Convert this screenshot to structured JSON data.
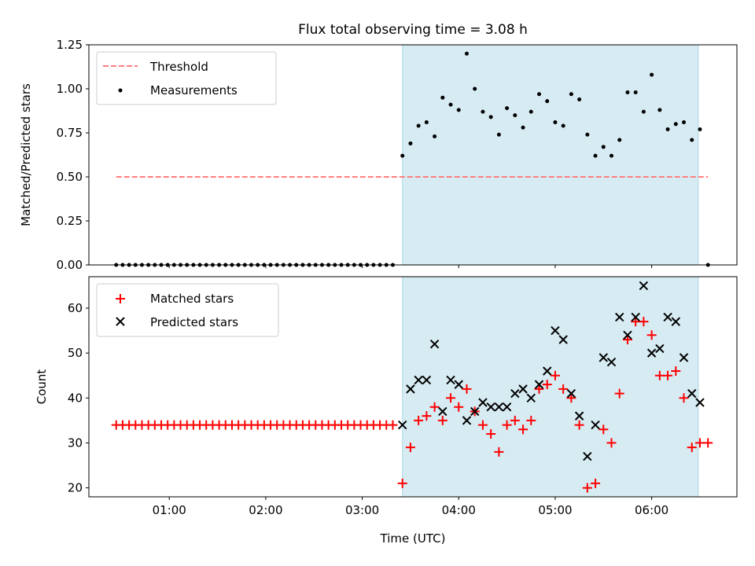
{
  "figure": {
    "title": "Flux total observing time = 3.08 h",
    "xlabel": "Time (UTC)"
  },
  "colors": {
    "threshold": "#ff7f7f",
    "measurements": "#000000",
    "matched": "#ff0000",
    "predicted": "#000000",
    "shade": "#add8e6"
  },
  "chart_data": [
    {
      "type": "scatter",
      "ylabel": "Matched/Predicted stars",
      "xlim": [
        "00:10",
        "06:53"
      ],
      "ylim": [
        0,
        1.25
      ],
      "yticks": [
        "0.00",
        "0.25",
        "0.50",
        "0.75",
        "1.00",
        "1.25"
      ],
      "shaded_range": [
        "03:25",
        "06:29"
      ],
      "legend_position": "upper-left",
      "legend": [
        "Threshold",
        "Measurements"
      ],
      "threshold": {
        "name": "Threshold",
        "value": 0.5,
        "x_start": "00:27",
        "x_end": "06:35"
      },
      "series": [
        {
          "name": "Measurements",
          "x": [
            "00:27",
            "00:31",
            "00:35",
            "00:39",
            "00:43",
            "00:47",
            "00:51",
            "00:55",
            "00:59",
            "01:03",
            "01:07",
            "01:11",
            "01:15",
            "01:19",
            "01:23",
            "01:27",
            "01:31",
            "01:35",
            "01:39",
            "01:43",
            "01:47",
            "01:51",
            "01:55",
            "01:59",
            "02:03",
            "02:07",
            "02:11",
            "02:15",
            "02:19",
            "02:23",
            "02:27",
            "02:31",
            "02:35",
            "02:39",
            "02:43",
            "02:47",
            "02:51",
            "02:55",
            "02:59",
            "03:03",
            "03:07",
            "03:11",
            "03:15",
            "03:19",
            "03:25",
            "03:30",
            "03:35",
            "03:40",
            "03:45",
            "03:50",
            "03:55",
            "04:00",
            "04:05",
            "04:10",
            "04:15",
            "04:20",
            "04:25",
            "04:30",
            "04:35",
            "04:40",
            "04:45",
            "04:50",
            "04:55",
            "05:00",
            "05:05",
            "05:10",
            "05:15",
            "05:20",
            "05:25",
            "05:30",
            "05:35",
            "05:40",
            "05:45",
            "05:50",
            "05:55",
            "06:00",
            "06:05",
            "06:10",
            "06:15",
            "06:20",
            "06:25",
            "06:30",
            "06:35"
          ],
          "y": [
            0,
            0,
            0,
            0,
            0,
            0,
            0,
            0,
            0,
            0,
            0,
            0,
            0,
            0,
            0,
            0,
            0,
            0,
            0,
            0,
            0,
            0,
            0,
            0,
            0,
            0,
            0,
            0,
            0,
            0,
            0,
            0,
            0,
            0,
            0,
            0,
            0,
            0,
            0,
            0,
            0,
            0,
            0,
            0,
            0.62,
            0.69,
            0.79,
            0.81,
            0.73,
            0.95,
            0.91,
            0.88,
            1.2,
            1.0,
            0.87,
            0.84,
            0.74,
            0.89,
            0.85,
            0.78,
            0.87,
            0.97,
            0.93,
            0.81,
            0.79,
            0.97,
            0.94,
            0.74,
            0.62,
            0.67,
            0.62,
            0.71,
            0.98,
            0.98,
            0.87,
            1.08,
            0.88,
            0.77,
            0.8,
            0.81,
            0.71,
            0.77,
            0
          ]
        }
      ]
    },
    {
      "type": "scatter",
      "ylabel": "Count",
      "xlabel": "Time (UTC)",
      "xlim": [
        "00:10",
        "06:53"
      ],
      "ylim": [
        18,
        67
      ],
      "yticks": [
        "20",
        "30",
        "40",
        "50",
        "60"
      ],
      "xticks": [
        "01:00",
        "02:00",
        "03:00",
        "04:00",
        "05:00",
        "06:00"
      ],
      "shaded_range": [
        "03:25",
        "06:29"
      ],
      "legend_position": "upper-left",
      "legend": [
        "Matched stars",
        "Predicted stars"
      ],
      "series": [
        {
          "name": "Matched stars",
          "x": [
            "00:27",
            "00:31",
            "00:35",
            "00:39",
            "00:43",
            "00:47",
            "00:51",
            "00:55",
            "00:59",
            "01:03",
            "01:07",
            "01:11",
            "01:15",
            "01:19",
            "01:23",
            "01:27",
            "01:31",
            "01:35",
            "01:39",
            "01:43",
            "01:47",
            "01:51",
            "01:55",
            "01:59",
            "02:03",
            "02:07",
            "02:11",
            "02:15",
            "02:19",
            "02:23",
            "02:27",
            "02:31",
            "02:35",
            "02:39",
            "02:43",
            "02:47",
            "02:51",
            "02:55",
            "02:59",
            "03:03",
            "03:07",
            "03:11",
            "03:15",
            "03:19",
            "03:25",
            "03:30",
            "03:35",
            "03:40",
            "03:45",
            "03:50",
            "03:55",
            "04:00",
            "04:05",
            "04:10",
            "04:15",
            "04:20",
            "04:25",
            "04:30",
            "04:35",
            "04:40",
            "04:45",
            "04:50",
            "04:55",
            "05:00",
            "05:05",
            "05:10",
            "05:15",
            "05:20",
            "05:25",
            "05:30",
            "05:35",
            "05:40",
            "05:45",
            "05:50",
            "05:55",
            "06:00",
            "06:05",
            "06:10",
            "06:15",
            "06:20",
            "06:25",
            "06:30",
            "06:35"
          ],
          "y": [
            34,
            34,
            34,
            34,
            34,
            34,
            34,
            34,
            34,
            34,
            34,
            34,
            34,
            34,
            34,
            34,
            34,
            34,
            34,
            34,
            34,
            34,
            34,
            34,
            34,
            34,
            34,
            34,
            34,
            34,
            34,
            34,
            34,
            34,
            34,
            34,
            34,
            34,
            34,
            34,
            34,
            34,
            34,
            34,
            21,
            29,
            35,
            36,
            38,
            35,
            40,
            38,
            42,
            37,
            34,
            32,
            28,
            34,
            35,
            33,
            35,
            42,
            43,
            45,
            42,
            40,
            34,
            20,
            21,
            33,
            30,
            41,
            53,
            57,
            57,
            54,
            45,
            45,
            46,
            40,
            29,
            30,
            30
          ]
        },
        {
          "name": "Predicted stars",
          "x": [
            "03:25",
            "03:30",
            "03:35",
            "03:40",
            "03:45",
            "03:50",
            "03:55",
            "04:00",
            "04:05",
            "04:10",
            "04:15",
            "04:20",
            "04:25",
            "04:30",
            "04:35",
            "04:40",
            "04:45",
            "04:50",
            "04:55",
            "05:00",
            "05:05",
            "05:10",
            "05:15",
            "05:20",
            "05:25",
            "05:30",
            "05:35",
            "05:40",
            "05:45",
            "05:50",
            "05:55",
            "06:00",
            "06:05",
            "06:10",
            "06:15",
            "06:20",
            "06:25",
            "06:30"
          ],
          "y": [
            34,
            42,
            44,
            44,
            52,
            37,
            44,
            43,
            35,
            37,
            39,
            38,
            38,
            38,
            41,
            42,
            40,
            43,
            46,
            55,
            53,
            41,
            36,
            27,
            34,
            49,
            48,
            58,
            54,
            58,
            65,
            50,
            51,
            58,
            57,
            49,
            41,
            39
          ]
        }
      ]
    }
  ]
}
